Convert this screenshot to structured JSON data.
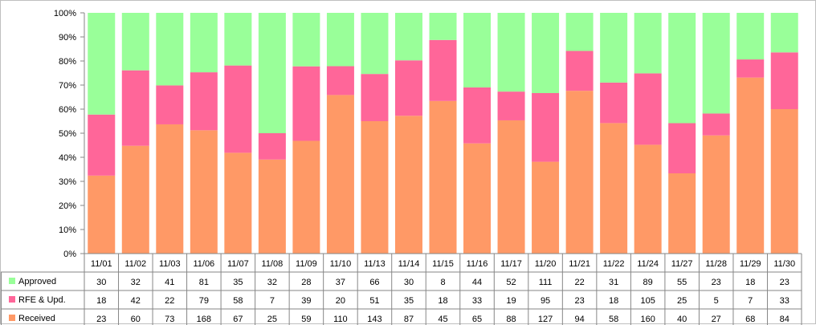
{
  "chart_data": {
    "type": "bar",
    "stacked": "percent",
    "title": "",
    "xlabel": "",
    "ylabel": "",
    "ylim": [
      0,
      100
    ],
    "y_ticks": [
      "0%",
      "10%",
      "20%",
      "30%",
      "40%",
      "50%",
      "60%",
      "70%",
      "80%",
      "90%",
      "100%"
    ],
    "grid": false,
    "legend": "data-table-left",
    "categories": [
      "11/01",
      "11/02",
      "11/03",
      "11/06",
      "11/07",
      "11/08",
      "11/09",
      "11/10",
      "11/13",
      "11/14",
      "11/15",
      "11/16",
      "11/17",
      "11/20",
      "11/21",
      "11/22",
      "11/24",
      "11/27",
      "11/28",
      "11/29",
      "11/30"
    ],
    "series": [
      {
        "name": "Approved",
        "color": "#99ff99",
        "values": [
          30,
          32,
          41,
          81,
          35,
          32,
          28,
          37,
          66,
          30,
          8,
          44,
          52,
          111,
          22,
          31,
          89,
          55,
          23,
          18,
          23
        ]
      },
      {
        "name": "RFE & Upd.",
        "color": "#ff6699",
        "values": [
          18,
          42,
          22,
          79,
          58,
          7,
          39,
          20,
          51,
          35,
          18,
          33,
          19,
          95,
          23,
          18,
          105,
          25,
          5,
          7,
          33
        ]
      },
      {
        "name": "Received",
        "color": "#ff9966",
        "values": [
          23,
          60,
          73,
          168,
          67,
          25,
          59,
          110,
          143,
          87,
          45,
          65,
          88,
          127,
          94,
          58,
          160,
          40,
          27,
          68,
          84
        ]
      }
    ],
    "stack_order_bottom_to_top": [
      "Received",
      "RFE & Upd.",
      "Approved"
    ]
  }
}
